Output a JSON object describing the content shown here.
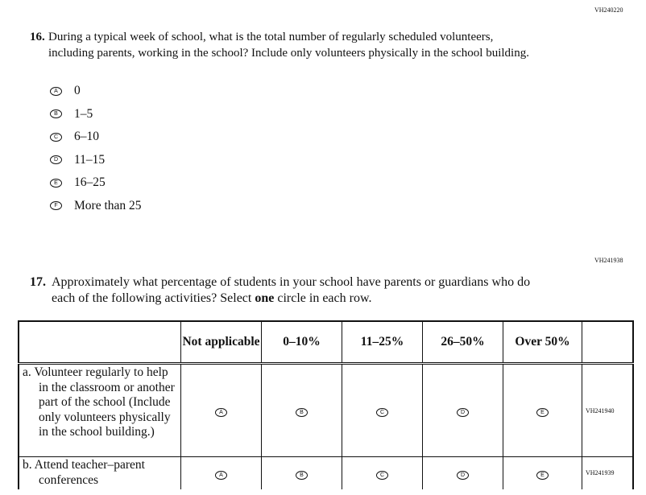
{
  "q16": {
    "code": "VH240220",
    "number": "16.",
    "text": "During a typical week of school, what is the total number of regularly scheduled volunteers, including parents, working in the school? Include only volunteers physically in the school building.",
    "options": [
      {
        "letter": "A",
        "label": "0"
      },
      {
        "letter": "B",
        "label": "1–5"
      },
      {
        "letter": "C",
        "label": "6–10"
      },
      {
        "letter": "D",
        "label": "11–15"
      },
      {
        "letter": "E",
        "label": "16–25"
      },
      {
        "letter": "F",
        "label": "More than 25"
      }
    ]
  },
  "q17": {
    "code": "VH241938",
    "number": "17.",
    "text_before": "Approximately what percentage of students in your school have parents or guardians who do each of the following activities? Select ",
    "text_bold": "one",
    "text_after": " circle in each row.",
    "columns": [
      "Not applicable",
      "0–10%",
      "11–25%",
      "26–50%",
      "Over 50%"
    ],
    "letters": [
      "A",
      "B",
      "C",
      "D",
      "E"
    ],
    "rows": [
      {
        "label": "a. Volunteer regularly to help in the classroom or another part of the school (Include only volunteers physically in the school building.)",
        "code": "VH241940"
      },
      {
        "label": "b. Attend teacher–parent conferences",
        "code": "VH241939"
      }
    ]
  }
}
